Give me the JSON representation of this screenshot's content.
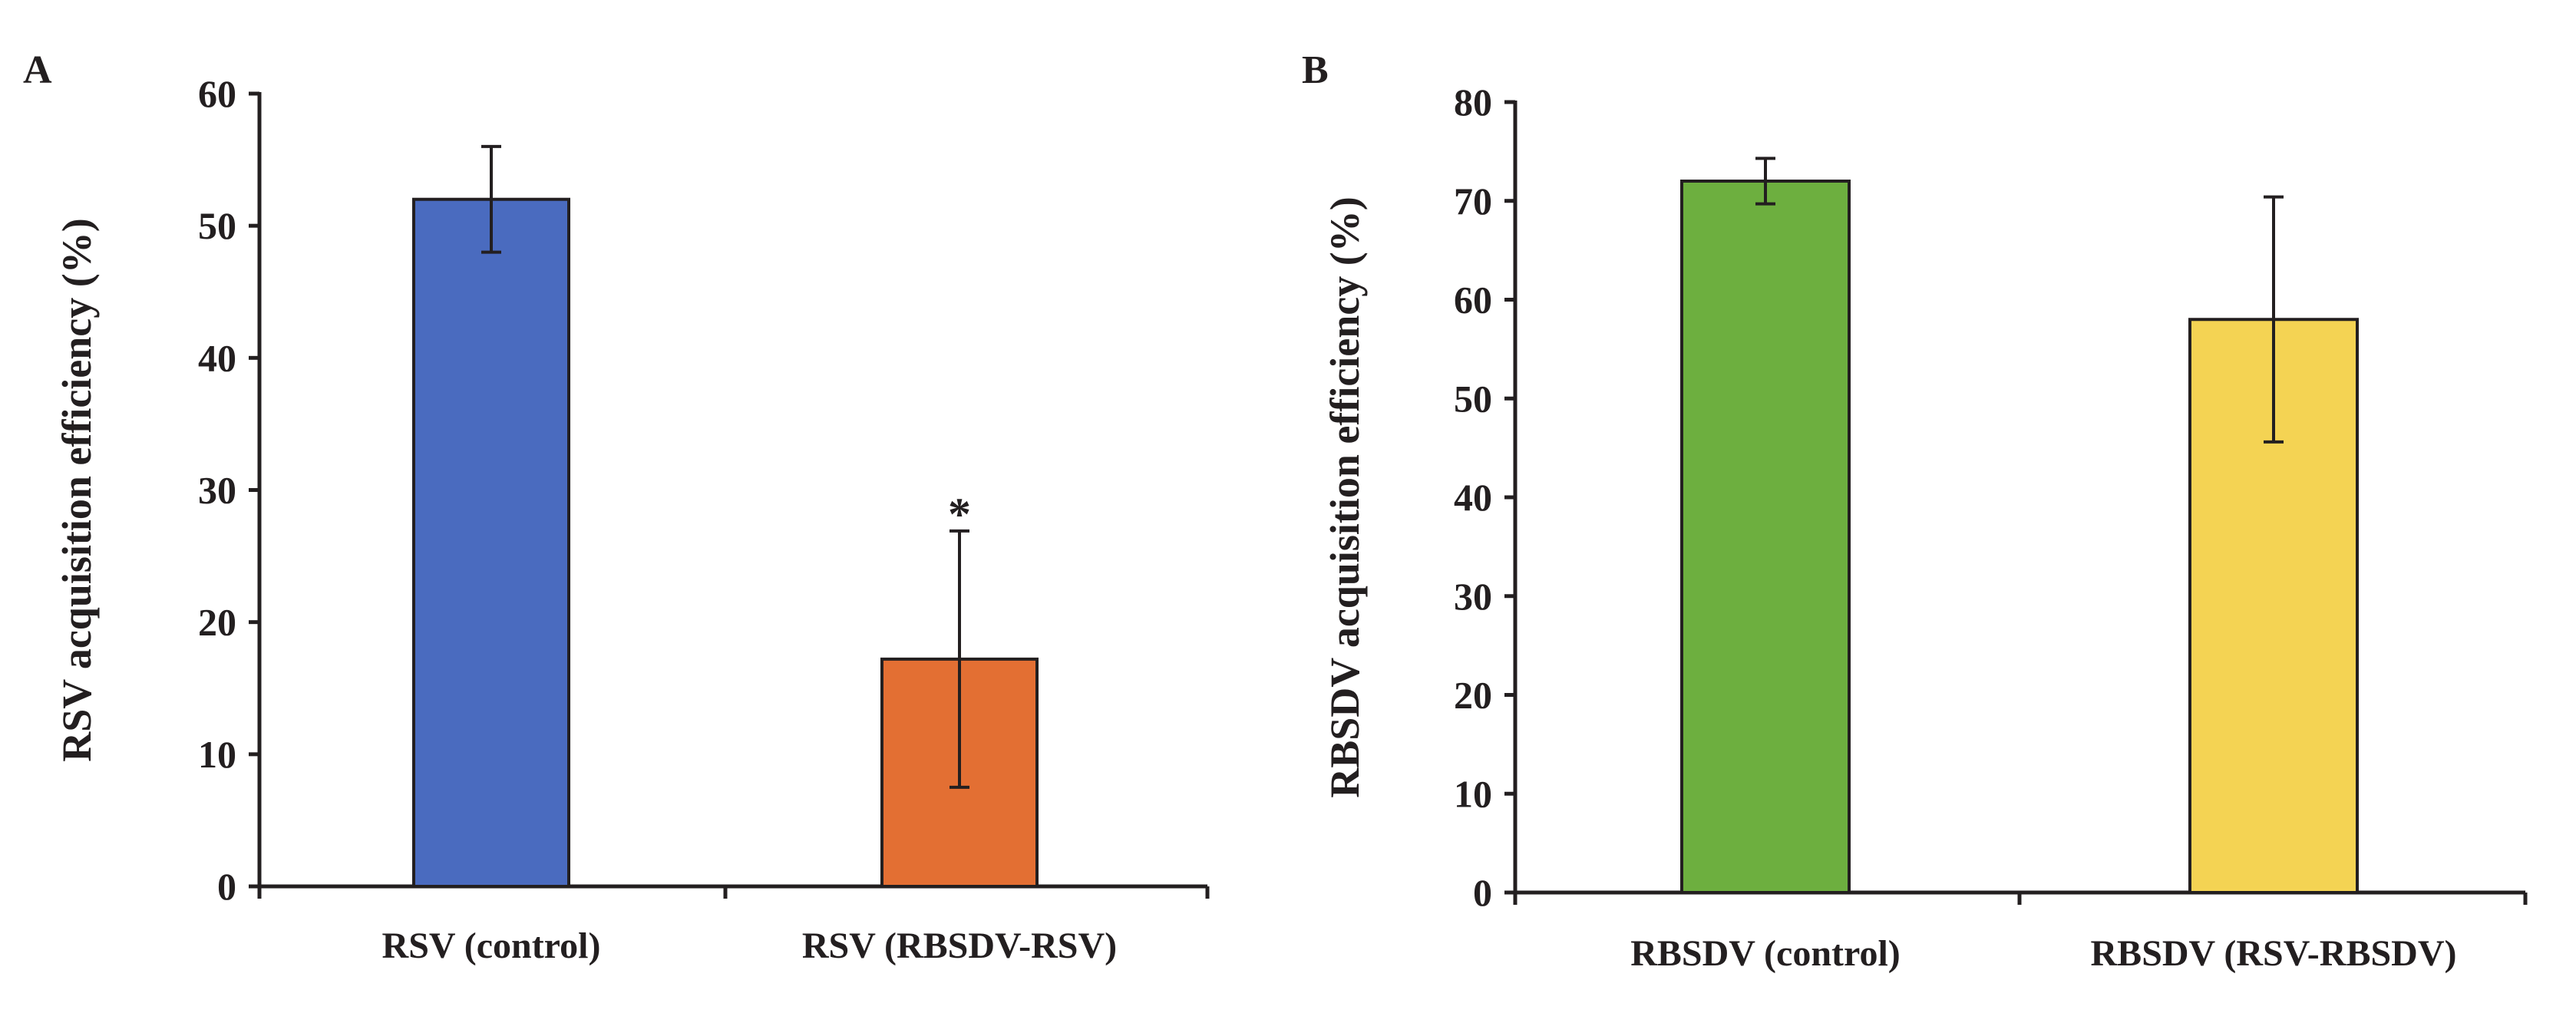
{
  "chart_data": [
    {
      "type": "bar",
      "panel_label": "A",
      "title": "",
      "xlabel": "",
      "ylabel": "RSV acquisition efficiency (%)",
      "ylim": [
        0,
        60
      ],
      "yticks": [
        0,
        10,
        20,
        30,
        40,
        50,
        60
      ],
      "categories": [
        "RSV (control)",
        "RSV (RBSDV-RSV)"
      ],
      "values": [
        52,
        17.2
      ],
      "errors": [
        4,
        9.7
      ],
      "colors": [
        "#4a6bbf",
        "#e36f33"
      ],
      "annotations": [
        "",
        "*"
      ]
    },
    {
      "type": "bar",
      "panel_label": "B",
      "title": "",
      "xlabel": "",
      "ylabel": "RBSDV acquisition efficiency (%)",
      "ylim": [
        0,
        80
      ],
      "yticks": [
        0,
        10,
        20,
        30,
        40,
        50,
        60,
        70,
        80
      ],
      "categories": [
        "RBSDV (control)",
        "RBSDV (RSV-RBSDV)"
      ],
      "values": [
        72,
        58
      ],
      "errors": [
        2.3,
        12.4
      ],
      "colors": [
        "#6daf3f",
        "#f4d353"
      ],
      "annotations": [
        "",
        ""
      ]
    }
  ]
}
